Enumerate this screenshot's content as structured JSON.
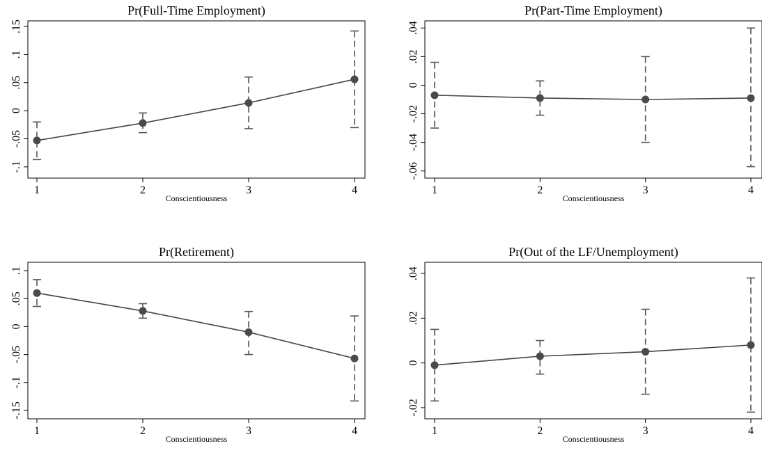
{
  "chart_data": [
    {
      "type": "line",
      "title": "Pr(Full-Time Employment)",
      "xlabel": "Conscientiousness",
      "x": [
        1,
        2,
        3,
        4
      ],
      "x_ticks": [
        "1",
        "2",
        "3",
        "4"
      ],
      "y_ticks": [
        "-.1",
        "-.05",
        "0",
        ".05",
        ".1",
        ".15"
      ],
      "y_tick_values": [
        -0.1,
        -0.05,
        0,
        0.05,
        0.1,
        0.15
      ],
      "ylim": [
        -0.12,
        0.16
      ],
      "series": [
        {
          "values": [
            -0.053,
            -0.022,
            0.014,
            0.056
          ],
          "ci_low": [
            -0.087,
            -0.039,
            -0.032,
            -0.03
          ],
          "ci_high": [
            -0.02,
            -0.004,
            0.06,
            0.142
          ]
        }
      ]
    },
    {
      "type": "line",
      "title": "Pr(Part-Time Employment)",
      "xlabel": "Conscientiousness",
      "x": [
        1,
        2,
        3,
        4
      ],
      "x_ticks": [
        "1",
        "2",
        "3",
        "4"
      ],
      "y_ticks": [
        "-.06",
        "-.04",
        "-.02",
        "0",
        ".02",
        ".04"
      ],
      "y_tick_values": [
        -0.06,
        -0.04,
        -0.02,
        0,
        0.02,
        0.04
      ],
      "ylim": [
        -0.065,
        0.045
      ],
      "series": [
        {
          "values": [
            -0.007,
            -0.009,
            -0.01,
            -0.009
          ],
          "ci_low": [
            -0.03,
            -0.021,
            -0.04,
            -0.057
          ],
          "ci_high": [
            0.016,
            0.003,
            0.02,
            0.04
          ]
        }
      ]
    },
    {
      "type": "line",
      "title": "Pr(Retirement)",
      "xlabel": "Conscientiousness",
      "x": [
        1,
        2,
        3,
        4
      ],
      "x_ticks": [
        "1",
        "2",
        "3",
        "4"
      ],
      "y_ticks": [
        "-.15",
        "-.1",
        "-.05",
        "0",
        ".05",
        ".1"
      ],
      "y_tick_values": [
        -0.15,
        -0.1,
        -0.05,
        0,
        0.05,
        0.1
      ],
      "ylim": [
        -0.165,
        0.115
      ],
      "series": [
        {
          "values": [
            0.06,
            0.028,
            -0.01,
            -0.057
          ],
          "ci_low": [
            0.036,
            0.015,
            -0.05,
            -0.133
          ],
          "ci_high": [
            0.084,
            0.041,
            0.027,
            0.019
          ]
        }
      ]
    },
    {
      "type": "line",
      "title": "Pr(Out of the LF/Unemployment)",
      "xlabel": "Conscientiousness",
      "x": [
        1,
        2,
        3,
        4
      ],
      "x_ticks": [
        "1",
        "2",
        "3",
        "4"
      ],
      "y_ticks": [
        "-.02",
        "0",
        ".02",
        ".04"
      ],
      "y_tick_values": [
        -0.02,
        0,
        0.02,
        0.04
      ],
      "ylim": [
        -0.025,
        0.045
      ],
      "series": [
        {
          "values": [
            -0.001,
            0.003,
            0.005,
            0.008
          ],
          "ci_low": [
            -0.017,
            -0.005,
            -0.014,
            -0.022
          ],
          "ci_high": [
            0.015,
            0.01,
            0.024,
            0.038
          ]
        }
      ]
    }
  ]
}
